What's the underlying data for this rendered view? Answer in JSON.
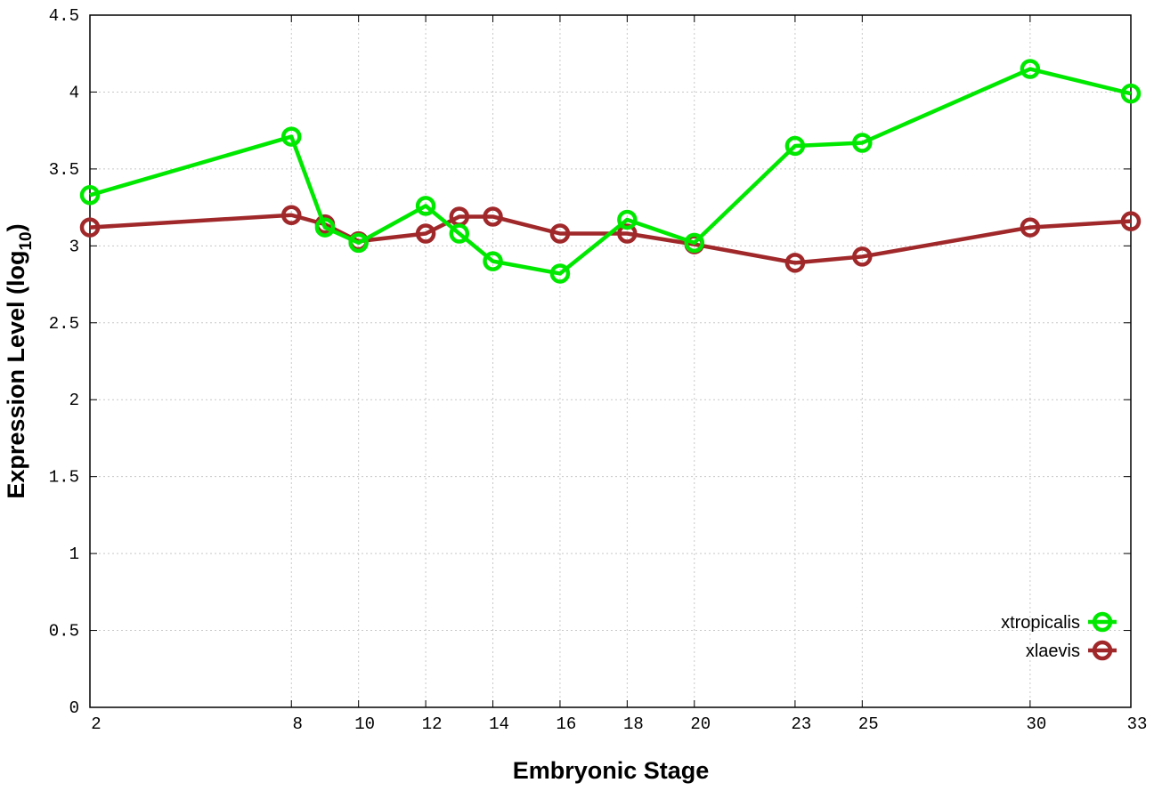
{
  "chart_data": {
    "type": "line",
    "title": "",
    "xlabel": "Embryonic Stage",
    "ylabel": "Expression Level (log",
    "ylabel_sub": "10",
    "ylabel_end": ")",
    "xlim": [
      2,
      33
    ],
    "ylim": [
      0,
      4.5
    ],
    "x": [
      2,
      8,
      9,
      10,
      12,
      13,
      14,
      16,
      18,
      20,
      23,
      25,
      30,
      33
    ],
    "xticks": [
      2,
      8,
      10,
      12,
      14,
      16,
      18,
      20,
      23,
      25,
      30,
      33
    ],
    "yticks": [
      "0",
      "0.5",
      "1",
      "1.5",
      "2",
      "2.5",
      "3",
      "3.5",
      "4",
      "4.5"
    ],
    "grid": true,
    "legend_position": "bottom-right",
    "series": [
      {
        "name": "xtropicalis",
        "color": "#00e800",
        "values": [
          3.33,
          3.71,
          3.12,
          3.02,
          3.26,
          3.08,
          2.9,
          2.82,
          3.17,
          3.02,
          3.65,
          3.67,
          4.15,
          3.99
        ]
      },
      {
        "name": "xlaevis",
        "color": "#a0282a",
        "values": [
          3.12,
          3.2,
          3.14,
          3.03,
          3.08,
          3.19,
          3.19,
          3.08,
          3.08,
          3.01,
          2.89,
          2.93,
          3.12,
          3.16
        ]
      }
    ]
  }
}
